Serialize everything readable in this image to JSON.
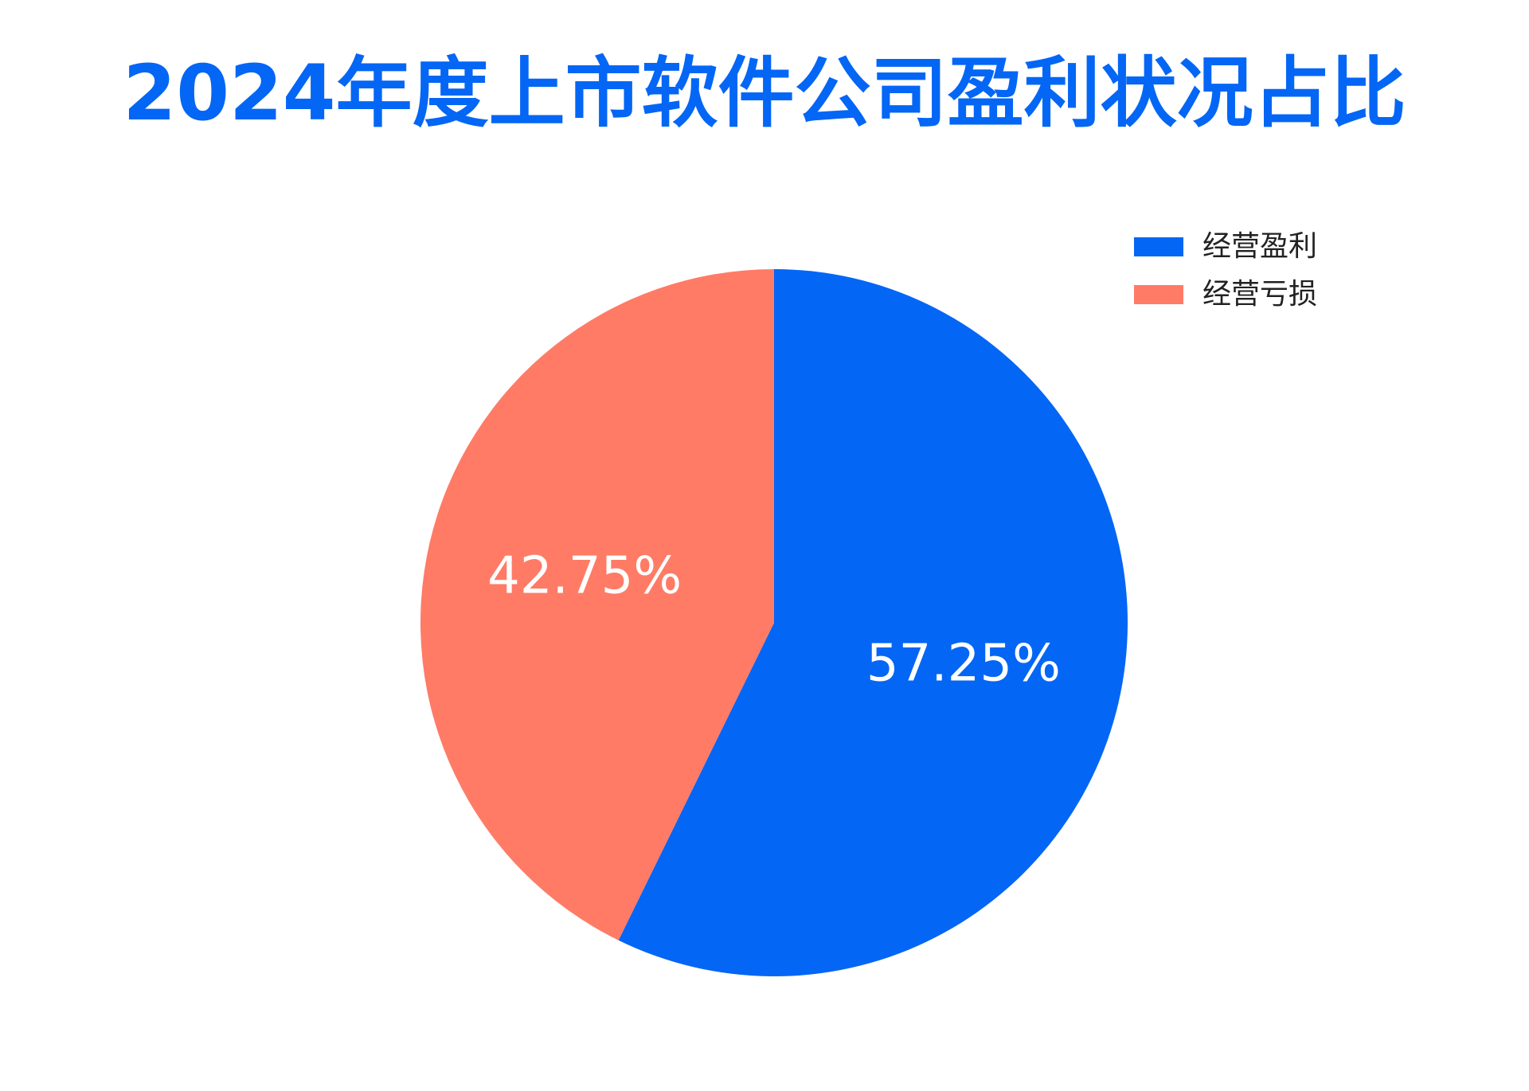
{
  "chart_data": {
    "type": "pie",
    "title": "2024年度上市软件公司盈利状况占比",
    "start_angle_deg": 0,
    "direction": "clockwise",
    "legend_position": "top-right",
    "slices": [
      {
        "label": "经营盈利",
        "value": 57.25,
        "value_label": "57.25%",
        "color": "#0466F5"
      },
      {
        "label": "经营亏损",
        "value": 42.75,
        "value_label": "42.75%",
        "color": "#FF7B66"
      }
    ]
  }
}
